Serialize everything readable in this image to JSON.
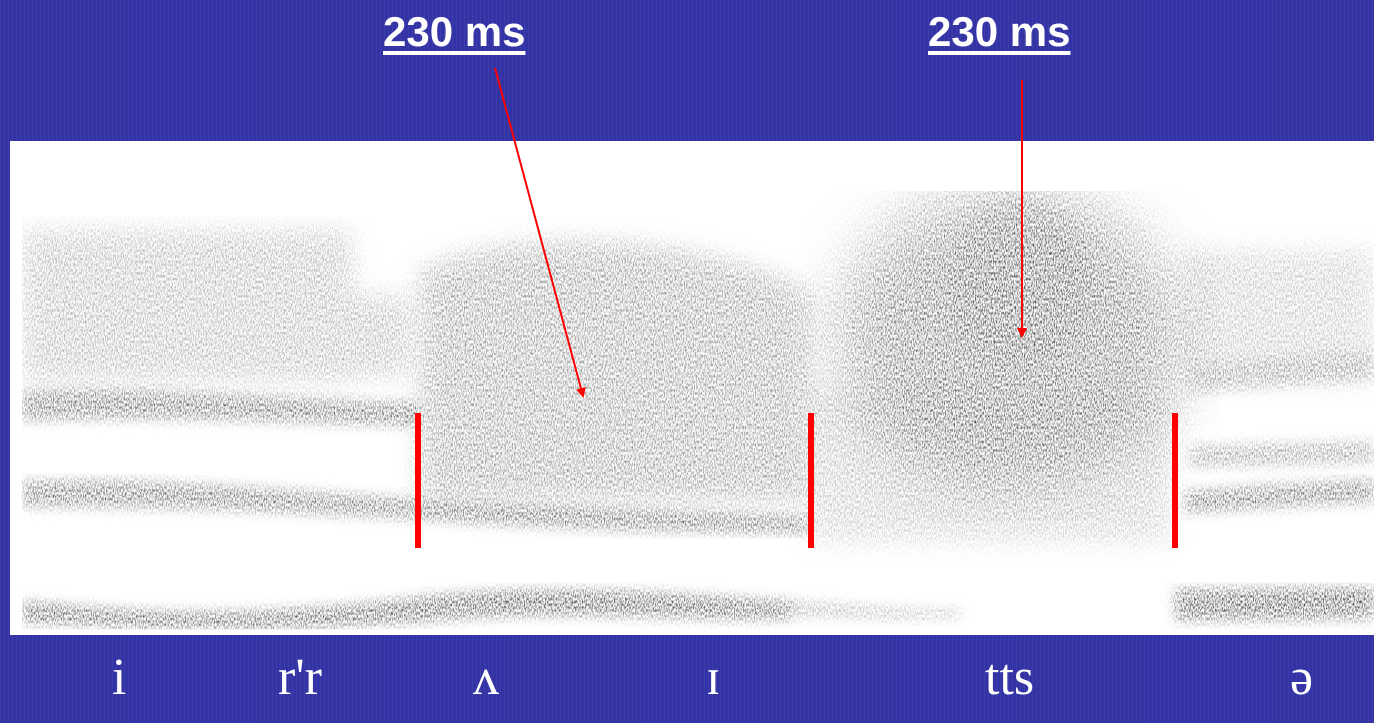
{
  "annotations": {
    "left_duration": "230 ms",
    "right_duration": "230 ms"
  },
  "segments": [
    "i",
    "r'r",
    "ʌ",
    "ɪ",
    "tts",
    "ə"
  ],
  "colors": {
    "background": "#3333a6",
    "boundary_marker": "#ff0000",
    "arrow": "#ff0000",
    "spectrogram_ink": "#1a1a1a"
  }
}
